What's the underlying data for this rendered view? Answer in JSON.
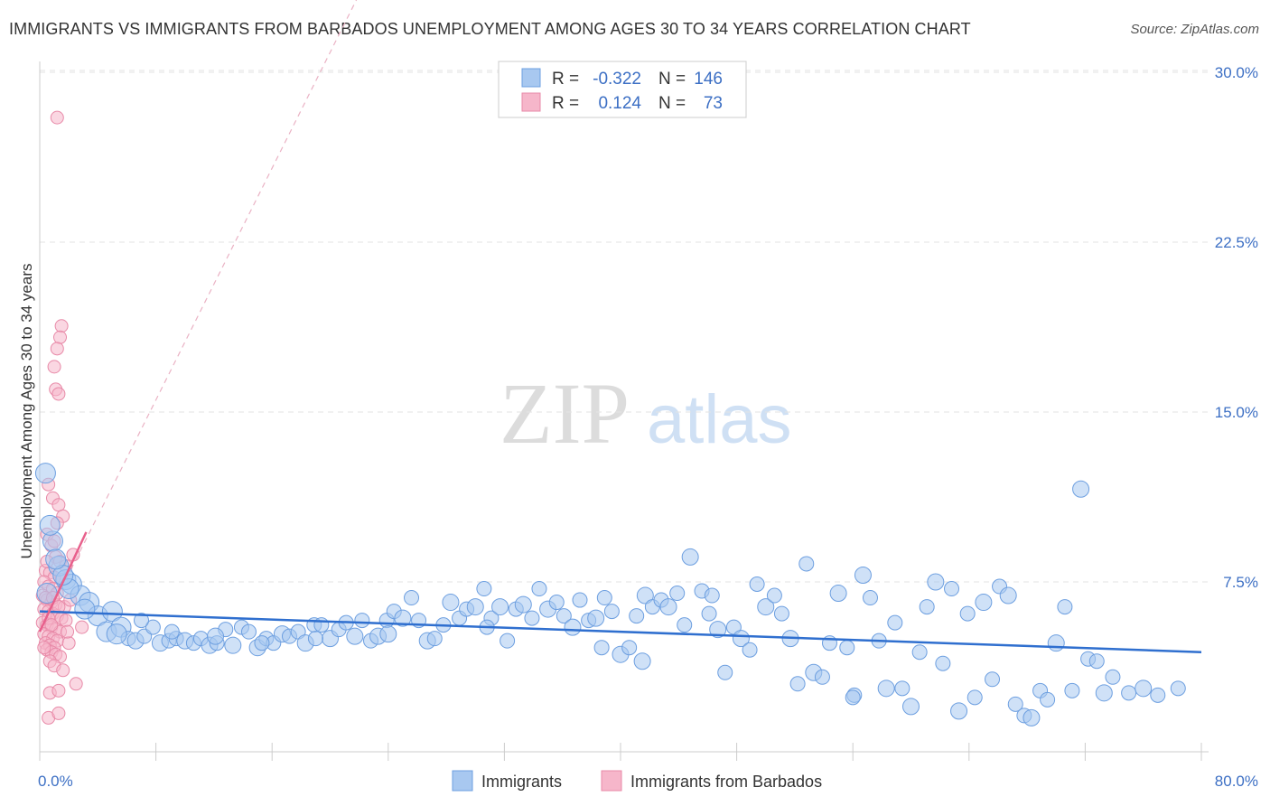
{
  "title": "IMMIGRANTS VS IMMIGRANTS FROM BARBADOS UNEMPLOYMENT AMONG AGES 30 TO 34 YEARS CORRELATION CHART",
  "source": "Source: ZipAtlas.com",
  "watermark": {
    "zip": "ZIP",
    "atlas": "atlas"
  },
  "colors": {
    "blue_fill": "#a8c8f0",
    "blue_stroke": "#6d9fe0",
    "blue_line": "#2f6fcf",
    "pink_fill": "#f6b6ca",
    "pink_stroke": "#e88aa8",
    "pink_line": "#e8608c",
    "tick_text": "#3c6fc4",
    "grid": "#e3e3e3"
  },
  "legend": {
    "rows": [
      {
        "r_label": "R =",
        "r_value": "-0.322",
        "n_label": "N =",
        "n_value": "146"
      },
      {
        "r_label": "R =",
        "r_value": "0.124",
        "n_label": "N =",
        "n_value": "73"
      }
    ]
  },
  "chart_data": {
    "type": "scatter",
    "title": "IMMIGRANTS VS IMMIGRANTS FROM BARBADOS UNEMPLOYMENT AMONG AGES 30 TO 34 YEARS CORRELATION CHART",
    "xlabel": "",
    "ylabel": "Unemployment Among Ages 30 to 34 years",
    "xlim": [
      0,
      80
    ],
    "ylim": [
      0,
      30
    ],
    "x_tick_labels": [
      "0.0%",
      "80.0%"
    ],
    "y_ticks": [
      7.5,
      15.0,
      22.5,
      30.0
    ],
    "y_tick_labels": [
      "7.5%",
      "15.0%",
      "22.5%",
      "30.0%"
    ],
    "grid": true,
    "legend_position": "top-center",
    "series": [
      {
        "name": "Immigrants",
        "R": -0.322,
        "N": 146,
        "trend": {
          "x0": 0,
          "y0": 6.2,
          "x1": 80,
          "y1": 4.4
        },
        "points": [
          [
            0.4,
            12.3
          ],
          [
            0.9,
            9.3
          ],
          [
            1.3,
            8.2
          ],
          [
            1.8,
            7.6
          ],
          [
            2.2,
            7.4
          ],
          [
            2.8,
            6.9
          ],
          [
            3.4,
            6.6
          ],
          [
            4.0,
            6.0
          ],
          [
            4.6,
            5.3
          ],
          [
            5.0,
            6.2
          ],
          [
            5.6,
            5.5
          ],
          [
            6.1,
            5.0
          ],
          [
            6.6,
            4.9
          ],
          [
            7.2,
            5.1
          ],
          [
            7.8,
            5.5
          ],
          [
            8.3,
            4.8
          ],
          [
            8.9,
            4.9
          ],
          [
            9.4,
            5.0
          ],
          [
            10.0,
            4.9
          ],
          [
            10.6,
            4.8
          ],
          [
            11.1,
            5.0
          ],
          [
            11.7,
            4.7
          ],
          [
            12.2,
            4.8
          ],
          [
            12.8,
            5.4
          ],
          [
            13.3,
            4.7
          ],
          [
            13.9,
            5.5
          ],
          [
            14.4,
            5.3
          ],
          [
            15.0,
            4.6
          ],
          [
            15.6,
            5.0
          ],
          [
            16.1,
            4.8
          ],
          [
            16.7,
            5.2
          ],
          [
            17.2,
            5.1
          ],
          [
            17.8,
            5.3
          ],
          [
            18.3,
            4.8
          ],
          [
            18.9,
            5.6
          ],
          [
            19.4,
            5.6
          ],
          [
            20.0,
            5.0
          ],
          [
            20.6,
            5.4
          ],
          [
            21.1,
            5.7
          ],
          [
            21.7,
            5.1
          ],
          [
            22.2,
            5.8
          ],
          [
            22.8,
            4.9
          ],
          [
            23.3,
            5.1
          ],
          [
            23.9,
            5.8
          ],
          [
            24.4,
            6.2
          ],
          [
            25.0,
            5.9
          ],
          [
            25.6,
            6.8
          ],
          [
            26.1,
            5.8
          ],
          [
            26.7,
            4.9
          ],
          [
            27.2,
            5.0
          ],
          [
            27.8,
            5.6
          ],
          [
            28.3,
            6.6
          ],
          [
            28.9,
            5.9
          ],
          [
            29.4,
            6.3
          ],
          [
            30.0,
            6.4
          ],
          [
            30.6,
            7.2
          ],
          [
            31.1,
            5.9
          ],
          [
            31.7,
            6.4
          ],
          [
            32.2,
            4.9
          ],
          [
            32.8,
            6.3
          ],
          [
            33.3,
            6.5
          ],
          [
            33.9,
            5.9
          ],
          [
            34.4,
            7.2
          ],
          [
            35.0,
            6.3
          ],
          [
            35.6,
            6.6
          ],
          [
            36.1,
            6.0
          ],
          [
            36.7,
            5.5
          ],
          [
            37.2,
            6.7
          ],
          [
            37.8,
            5.8
          ],
          [
            38.3,
            5.9
          ],
          [
            38.9,
            6.8
          ],
          [
            39.4,
            6.2
          ],
          [
            40.0,
            4.3
          ],
          [
            40.6,
            4.6
          ],
          [
            41.1,
            6.0
          ],
          [
            41.7,
            6.9
          ],
          [
            42.2,
            6.4
          ],
          [
            42.8,
            6.7
          ],
          [
            43.3,
            6.4
          ],
          [
            43.9,
            7.0
          ],
          [
            44.4,
            5.6
          ],
          [
            44.8,
            8.6
          ],
          [
            45.6,
            7.1
          ],
          [
            46.1,
            6.1
          ],
          [
            46.7,
            5.4
          ],
          [
            47.2,
            3.5
          ],
          [
            47.8,
            5.5
          ],
          [
            48.3,
            5.0
          ],
          [
            48.9,
            4.5
          ],
          [
            49.4,
            7.4
          ],
          [
            50.0,
            6.4
          ],
          [
            50.6,
            6.9
          ],
          [
            51.1,
            6.1
          ],
          [
            51.7,
            5.0
          ],
          [
            52.2,
            3.0
          ],
          [
            52.8,
            8.3
          ],
          [
            53.3,
            3.5
          ],
          [
            53.9,
            3.3
          ],
          [
            54.4,
            4.8
          ],
          [
            55.0,
            7.0
          ],
          [
            55.6,
            4.6
          ],
          [
            56.1,
            2.5
          ],
          [
            56.7,
            7.8
          ],
          [
            57.2,
            6.8
          ],
          [
            57.8,
            4.9
          ],
          [
            58.3,
            2.8
          ],
          [
            58.9,
            5.7
          ],
          [
            59.4,
            2.8
          ],
          [
            60.0,
            2.0
          ],
          [
            60.6,
            4.4
          ],
          [
            61.1,
            6.4
          ],
          [
            61.7,
            7.5
          ],
          [
            62.2,
            3.9
          ],
          [
            62.8,
            7.2
          ],
          [
            63.3,
            1.8
          ],
          [
            63.9,
            6.1
          ],
          [
            64.4,
            2.4
          ],
          [
            65.0,
            6.6
          ],
          [
            65.6,
            3.2
          ],
          [
            66.1,
            7.3
          ],
          [
            66.7,
            6.9
          ],
          [
            67.2,
            2.1
          ],
          [
            67.8,
            1.6
          ],
          [
            68.3,
            1.5
          ],
          [
            68.9,
            2.7
          ],
          [
            69.4,
            2.3
          ],
          [
            70.0,
            4.8
          ],
          [
            70.6,
            6.4
          ],
          [
            71.1,
            2.7
          ],
          [
            71.7,
            11.6
          ],
          [
            72.2,
            4.1
          ],
          [
            72.8,
            4.0
          ],
          [
            73.3,
            2.6
          ],
          [
            73.9,
            3.3
          ],
          [
            75.0,
            2.6
          ],
          [
            76.0,
            2.8
          ],
          [
            77.0,
            2.5
          ],
          [
            78.4,
            2.8
          ],
          [
            41.5,
            4.0
          ],
          [
            56.0,
            2.4
          ],
          [
            30.8,
            5.5
          ],
          [
            24.0,
            5.2
          ],
          [
            19.0,
            5.0
          ],
          [
            15.3,
            4.8
          ],
          [
            12.1,
            5.1
          ],
          [
            9.1,
            5.3
          ],
          [
            7.0,
            5.8
          ],
          [
            5.3,
            5.2
          ],
          [
            3.1,
            6.3
          ],
          [
            2.0,
            7.2
          ],
          [
            1.6,
            7.8
          ],
          [
            1.1,
            8.5
          ],
          [
            0.7,
            10.0
          ],
          [
            0.5,
            7.0
          ],
          [
            38.7,
            4.6
          ],
          [
            46.3,
            6.9
          ]
        ]
      },
      {
        "name": "Immigrants from Barbados",
        "R": 0.124,
        "N": 73,
        "trend": {
          "x0": 0,
          "y0": 5.3,
          "x1": 3.2,
          "y1": 9.7
        },
        "trend_extended": {
          "x0": 0,
          "y0": 5.3,
          "x1": 24,
          "y1": 36.0
        },
        "points": [
          [
            1.2,
            28.0
          ],
          [
            1.5,
            18.8
          ],
          [
            1.4,
            18.3
          ],
          [
            1.2,
            17.8
          ],
          [
            1.0,
            17.0
          ],
          [
            1.1,
            16.0
          ],
          [
            1.3,
            15.8
          ],
          [
            0.6,
            11.8
          ],
          [
            0.9,
            11.2
          ],
          [
            1.3,
            10.9
          ],
          [
            1.6,
            10.4
          ],
          [
            1.2,
            10.1
          ],
          [
            0.5,
            9.6
          ],
          [
            0.8,
            9.1
          ],
          [
            1.1,
            8.6
          ],
          [
            1.4,
            8.4
          ],
          [
            1.8,
            8.2
          ],
          [
            0.4,
            8.0
          ],
          [
            0.7,
            7.9
          ],
          [
            1.0,
            7.7
          ],
          [
            0.3,
            7.5
          ],
          [
            0.6,
            7.3
          ],
          [
            0.9,
            7.2
          ],
          [
            1.2,
            7.0
          ],
          [
            0.2,
            6.9
          ],
          [
            0.5,
            6.7
          ],
          [
            0.8,
            6.6
          ],
          [
            1.1,
            6.5
          ],
          [
            0.3,
            6.3
          ],
          [
            0.6,
            6.2
          ],
          [
            0.9,
            6.1
          ],
          [
            1.2,
            6.0
          ],
          [
            1.5,
            5.9
          ],
          [
            1.8,
            5.8
          ],
          [
            0.2,
            5.7
          ],
          [
            0.5,
            5.6
          ],
          [
            0.8,
            5.5
          ],
          [
            1.1,
            5.4
          ],
          [
            1.4,
            5.3
          ],
          [
            0.3,
            5.2
          ],
          [
            0.6,
            5.1
          ],
          [
            0.9,
            5.0
          ],
          [
            1.2,
            4.9
          ],
          [
            0.4,
            4.8
          ],
          [
            0.7,
            4.7
          ],
          [
            1.0,
            4.6
          ],
          [
            0.5,
            4.5
          ],
          [
            0.8,
            4.4
          ],
          [
            1.1,
            4.3
          ],
          [
            1.4,
            4.2
          ],
          [
            0.7,
            4.0
          ],
          [
            1.0,
            3.8
          ],
          [
            1.6,
            3.6
          ],
          [
            2.5,
            3.0
          ],
          [
            0.7,
            2.6
          ],
          [
            1.3,
            2.7
          ],
          [
            0.6,
            1.5
          ],
          [
            1.3,
            1.7
          ],
          [
            2.9,
            5.5
          ],
          [
            2.0,
            4.8
          ],
          [
            1.7,
            6.4
          ],
          [
            2.3,
            8.7
          ],
          [
            0.4,
            6.8
          ],
          [
            0.6,
            5.9
          ],
          [
            0.9,
            6.8
          ],
          [
            1.5,
            7.6
          ],
          [
            1.9,
            5.3
          ],
          [
            2.1,
            6.7
          ],
          [
            0.3,
            4.6
          ],
          [
            0.5,
            8.4
          ],
          [
            1.0,
            9.3
          ],
          [
            0.8,
            5.6
          ],
          [
            1.3,
            6.4
          ]
        ]
      }
    ]
  },
  "bottom_legend": {
    "immigrants": "Immigrants",
    "barbados": "Immigrants from Barbados"
  }
}
